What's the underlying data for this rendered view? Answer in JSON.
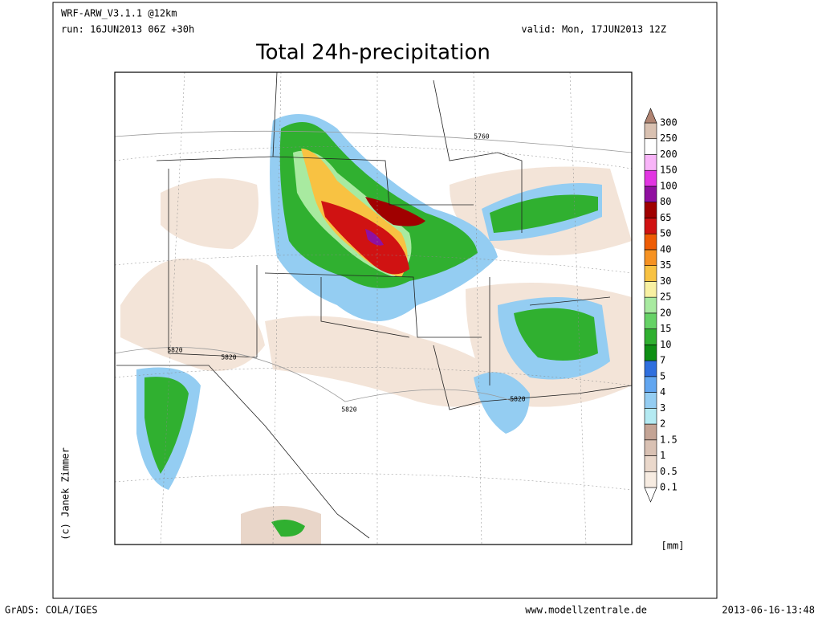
{
  "header": {
    "model": "WRF-ARW_V3.1.1 @12km",
    "run": "run: 16JUN2013 06Z +30h",
    "valid": "valid: Mon, 17JUN2013 12Z",
    "title": "Total 24h-precipitation"
  },
  "legend": {
    "unit": "[mm]",
    "labels": [
      "0.1",
      "0.5",
      "1",
      "1.5",
      "2",
      "3",
      "4",
      "5",
      "7",
      "10",
      "15",
      "20",
      "25",
      "30",
      "35",
      "40",
      "50",
      "65",
      "80",
      "100",
      "150",
      "200",
      "250",
      "300"
    ],
    "colors": [
      "#ffffff",
      "#f7ece2",
      "#ead8cb",
      "#d9c1b3",
      "#c4a495",
      "#b4eaf2",
      "#94cdf2",
      "#62a6f0",
      "#2f6fde",
      "#0f8f14",
      "#30b030",
      "#66d266",
      "#a8eaa0",
      "#f8f0a2",
      "#f8c242",
      "#f69222",
      "#ee5c04",
      "#d01212",
      "#a00000",
      "#9010a0",
      "#e236e2",
      "#f8b4f8",
      "#ffffff",
      "#d9c1b1",
      "#b08472"
    ]
  },
  "map": {
    "contour_labels": [
      "5760",
      "5820",
      "5820",
      "5820",
      "5820"
    ]
  },
  "credit": "(c) Janek Zimmer",
  "footer": {
    "software": "GrADS: COLA/IGES",
    "website": "www.modellzentrale.de",
    "timestamp": "2013-06-16-13:48"
  }
}
